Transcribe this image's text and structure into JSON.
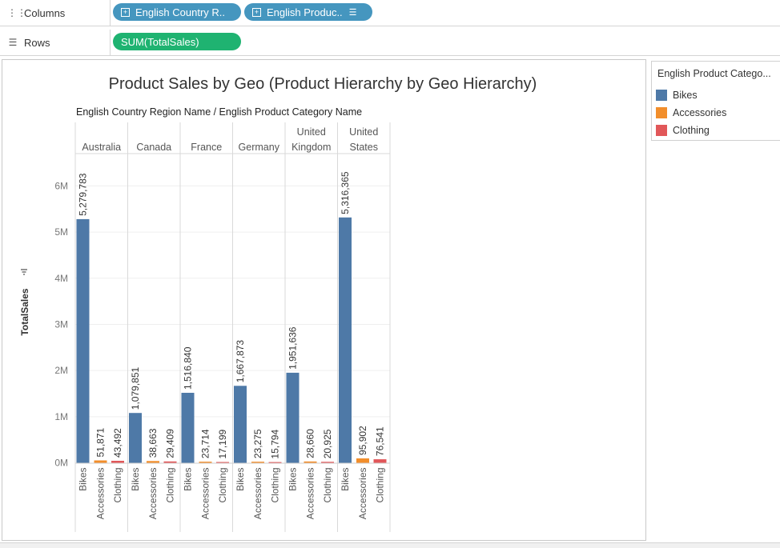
{
  "shelves": {
    "columns": {
      "label": "Columns",
      "pills": [
        {
          "text": "English Country R.."
        },
        {
          "text": "English Produc.."
        }
      ]
    },
    "rows": {
      "label": "Rows",
      "pills": [
        {
          "text": "SUM(TotalSales)"
        }
      ]
    }
  },
  "legend": {
    "title": "English Product Catego...",
    "items": [
      {
        "label": "Bikes",
        "color": "#4e79a7"
      },
      {
        "label": "Accessories",
        "color": "#f28e2b"
      },
      {
        "label": "Clothing",
        "color": "#e15759"
      }
    ]
  },
  "chart_data": {
    "type": "bar",
    "title": "Product Sales by Geo (Product Hierarchy by Geo Hierarchy)",
    "header_label": "English Country Region Name / English Product Category Name",
    "ylabel": "TotalSales",
    "ylim": [
      0,
      6700000
    ],
    "yticks": [
      0,
      1000000,
      2000000,
      3000000,
      4000000,
      5000000,
      6000000
    ],
    "ytick_labels": [
      "0M",
      "1M",
      "2M",
      "3M",
      "4M",
      "5M",
      "6M"
    ],
    "groups": [
      {
        "name": [
          "Australia"
        ],
        "values": [
          5279783,
          51871,
          43492
        ],
        "labels": [
          "5,279,783",
          "51,871",
          "43,492"
        ]
      },
      {
        "name": [
          "Canada"
        ],
        "values": [
          1079851,
          38663,
          29409
        ],
        "labels": [
          "1,079,851",
          "38,663",
          "29,409"
        ]
      },
      {
        "name": [
          "France"
        ],
        "values": [
          1516840,
          23714,
          17199
        ],
        "labels": [
          "1,516,840",
          "23,714",
          "17,199"
        ]
      },
      {
        "name": [
          "Germany"
        ],
        "values": [
          1667873,
          23275,
          15794
        ],
        "labels": [
          "1,667,873",
          "23,275",
          "15,794"
        ]
      },
      {
        "name": [
          "United",
          "Kingdom"
        ],
        "values": [
          1951636,
          28660,
          20925
        ],
        "labels": [
          "1,951,636",
          "28,660",
          "20,925"
        ]
      },
      {
        "name": [
          "United",
          "States"
        ],
        "values": [
          5316365,
          95902,
          76541
        ],
        "labels": [
          "5,316,365",
          "95,902",
          "76,541"
        ]
      }
    ],
    "categories": [
      "Bikes",
      "Accessories",
      "Clothing"
    ],
    "colors": [
      "#4e79a7",
      "#f28e2b",
      "#e15759"
    ],
    "gridlines": true,
    "legend_position": "right"
  }
}
